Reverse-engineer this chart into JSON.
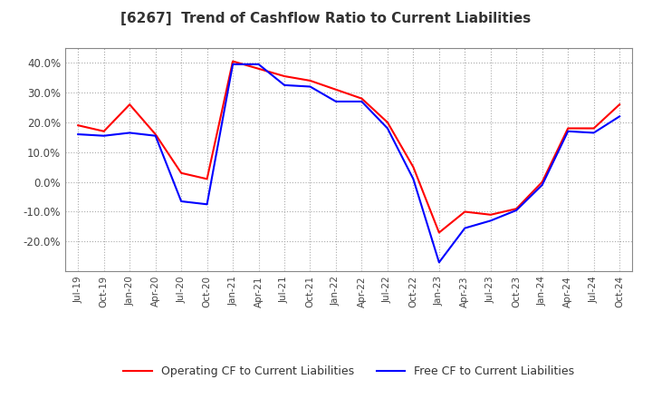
{
  "title": "[6267]  Trend of Cashflow Ratio to Current Liabilities",
  "title_fontsize": 11,
  "ylim": [
    -0.3,
    0.45
  ],
  "yticks": [
    -0.2,
    -0.1,
    0.0,
    0.1,
    0.2,
    0.3,
    0.4
  ],
  "background_color": "#ffffff",
  "grid_color": "#aaaaaa",
  "x_labels": [
    "Jul-19",
    "Oct-19",
    "Jan-20",
    "Apr-20",
    "Jul-20",
    "Oct-20",
    "Jan-21",
    "Apr-21",
    "Jul-21",
    "Oct-21",
    "Jan-22",
    "Apr-22",
    "Jul-22",
    "Oct-22",
    "Jan-23",
    "Apr-23",
    "Jul-23",
    "Oct-23",
    "Jan-24",
    "Apr-24",
    "Jul-24",
    "Oct-24"
  ],
  "operating_cf": [
    0.19,
    0.17,
    0.26,
    0.16,
    0.03,
    0.01,
    0.405,
    0.38,
    0.355,
    0.34,
    0.31,
    0.28,
    0.2,
    0.05,
    -0.17,
    -0.1,
    -0.11,
    -0.09,
    0.0,
    0.18,
    0.18,
    0.26
  ],
  "free_cf": [
    0.16,
    0.155,
    0.165,
    0.155,
    -0.065,
    -0.075,
    0.395,
    0.395,
    0.325,
    0.32,
    0.27,
    0.27,
    0.18,
    0.01,
    -0.27,
    -0.155,
    -0.13,
    -0.095,
    -0.01,
    0.17,
    0.165,
    0.22
  ],
  "operating_color": "#ff0000",
  "free_color": "#0000ff",
  "line_width": 1.5,
  "legend_labels": [
    "Operating CF to Current Liabilities",
    "Free CF to Current Liabilities"
  ]
}
